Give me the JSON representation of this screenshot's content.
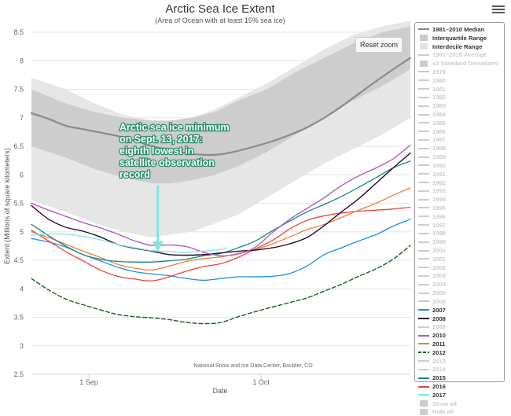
{
  "ui": {
    "menu_icon": "hamburger-menu-icon",
    "reset_zoom_label": "Reset zoom",
    "credit": "National Snow and Ice Data Center, Boulder, CO",
    "annotation_lines": [
      "Arctic sea ice minimum",
      "on Sept. 13, 2017:",
      "eighth lowest in",
      "satellite observation",
      "record"
    ]
  },
  "legend": {
    "items": [
      {
        "label": "1981–2010 Median",
        "symbol": "line",
        "color": "#898989",
        "active": true
      },
      {
        "label": "Interquartile Range",
        "symbol": "box",
        "color": "#c8c8c8",
        "active": true
      },
      {
        "label": "Interdecile Range",
        "symbol": "box",
        "color": "#e3e3e3",
        "active": true
      },
      {
        "label": "1981–2010 Average",
        "symbol": "line",
        "color": "#cccccc",
        "active": false
      },
      {
        "label": "±2 Standard Deviations",
        "symbol": "box",
        "color": "#cccccc",
        "active": false
      },
      {
        "label": "1979",
        "symbol": "line",
        "color": "#cccccc",
        "active": false
      },
      {
        "label": "1980",
        "symbol": "line",
        "color": "#cccccc",
        "active": false
      },
      {
        "label": "1981",
        "symbol": "line",
        "color": "#cccccc",
        "active": false
      },
      {
        "label": "1982",
        "symbol": "line",
        "color": "#cccccc",
        "active": false
      },
      {
        "label": "1983",
        "symbol": "line",
        "color": "#cccccc",
        "active": false
      },
      {
        "label": "1984",
        "symbol": "line",
        "color": "#cccccc",
        "active": false
      },
      {
        "label": "1985",
        "symbol": "line",
        "color": "#cccccc",
        "active": false
      },
      {
        "label": "1986",
        "symbol": "line",
        "color": "#cccccc",
        "active": false
      },
      {
        "label": "1987",
        "symbol": "line",
        "color": "#cccccc",
        "active": false
      },
      {
        "label": "1988",
        "symbol": "line",
        "color": "#cccccc",
        "active": false
      },
      {
        "label": "1989",
        "symbol": "line",
        "color": "#cccccc",
        "active": false
      },
      {
        "label": "1990",
        "symbol": "line",
        "color": "#cccccc",
        "active": false
      },
      {
        "label": "1991",
        "symbol": "line",
        "color": "#cccccc",
        "active": false
      },
      {
        "label": "1992",
        "symbol": "line",
        "color": "#cccccc",
        "active": false
      },
      {
        "label": "1993",
        "symbol": "line",
        "color": "#cccccc",
        "active": false
      },
      {
        "label": "1994",
        "symbol": "line",
        "color": "#cccccc",
        "active": false
      },
      {
        "label": "1995",
        "symbol": "line",
        "color": "#cccccc",
        "active": false
      },
      {
        "label": "1996",
        "symbol": "line",
        "color": "#cccccc",
        "active": false
      },
      {
        "label": "1997",
        "symbol": "line",
        "color": "#cccccc",
        "active": false
      },
      {
        "label": "1998",
        "symbol": "line",
        "color": "#cccccc",
        "active": false
      },
      {
        "label": "1999",
        "symbol": "line",
        "color": "#cccccc",
        "active": false
      },
      {
        "label": "2000",
        "symbol": "line",
        "color": "#cccccc",
        "active": false
      },
      {
        "label": "2001",
        "symbol": "line",
        "color": "#cccccc",
        "active": false
      },
      {
        "label": "2002",
        "symbol": "line",
        "color": "#cccccc",
        "active": false
      },
      {
        "label": "2003",
        "symbol": "line",
        "color": "#cccccc",
        "active": false
      },
      {
        "label": "2004",
        "symbol": "line",
        "color": "#cccccc",
        "active": false
      },
      {
        "label": "2005",
        "symbol": "line",
        "color": "#cccccc",
        "active": false
      },
      {
        "label": "2006",
        "symbol": "line",
        "color": "#cccccc",
        "active": false
      },
      {
        "label": "2007",
        "symbol": "line",
        "color": "#1f8ee6",
        "active": true
      },
      {
        "label": "2008",
        "symbol": "line",
        "color": "#2a0a2e",
        "active": true
      },
      {
        "label": "2009",
        "symbol": "line",
        "color": "#cccccc",
        "active": false
      },
      {
        "label": "2010",
        "symbol": "line",
        "color": "#b05ec4",
        "active": true
      },
      {
        "label": "2011",
        "symbol": "line",
        "color": "#f07e3c",
        "active": true
      },
      {
        "label": "2012",
        "symbol": "dash",
        "color": "#1b5e20",
        "active": true
      },
      {
        "label": "2013",
        "symbol": "line",
        "color": "#cccccc",
        "active": false
      },
      {
        "label": "2014",
        "symbol": "line",
        "color": "#cccccc",
        "active": false
      },
      {
        "label": "2015",
        "symbol": "line",
        "color": "#16878a",
        "active": true
      },
      {
        "label": "2016",
        "symbol": "line",
        "color": "#e8453c",
        "active": true
      },
      {
        "label": "2017",
        "symbol": "line",
        "color": "#7fe6e0",
        "active": true
      },
      {
        "label": "Show all",
        "symbol": "box",
        "color": "#cccccc",
        "active": false
      },
      {
        "label": "Hide all",
        "symbol": "box",
        "color": "#cccccc",
        "active": false
      }
    ]
  },
  "chart_data": {
    "type": "line",
    "title": "Arctic Sea Ice Extent",
    "subtitle": "(Area of Ocean with at least 15% sea ice)",
    "xlabel": "Date",
    "ylabel": "Extent (Millions of square kilometers)",
    "x_unit": "day of year",
    "xlim": [
      234,
      300
    ],
    "ylim": [
      2.5,
      8.5
    ],
    "y_ticks": [
      "2.5",
      "3",
      "3.5",
      "4",
      "4.5",
      "5",
      "5.5",
      "6",
      "6.5",
      "7",
      "7.5",
      "8",
      "8.5"
    ],
    "x_ticks": [
      {
        "day": 244,
        "label": "1 Sep"
      },
      {
        "day": 274,
        "label": "1 Oct"
      }
    ],
    "grid": "horizontal",
    "legend_position": "right",
    "annotation": {
      "text": "Arctic sea ice minimum on Sept. 13, 2017: eighth lowest in satellite observation record",
      "day": 256,
      "value": 4.64
    },
    "bands": [
      {
        "name": "Interdecile Range",
        "color": "#e6e6e6",
        "x": [
          234,
          240,
          245,
          250,
          255,
          258,
          262,
          266,
          270,
          275,
          280,
          285,
          290,
          295,
          300
        ],
        "lower": [
          5.55,
          5.35,
          5.15,
          5.0,
          4.9,
          4.95,
          5.0,
          5.15,
          5.3,
          5.6,
          5.9,
          6.2,
          6.45,
          6.7,
          7.0
        ],
        "upper": [
          7.7,
          7.5,
          7.25,
          7.05,
          6.95,
          6.95,
          7.0,
          7.15,
          7.35,
          7.6,
          7.9,
          8.2,
          8.45,
          8.6,
          8.7
        ]
      },
      {
        "name": "Interquartile Range",
        "color": "#cdcdcd",
        "x": [
          234,
          240,
          245,
          250,
          255,
          258,
          262,
          266,
          270,
          275,
          280,
          285,
          290,
          295,
          300
        ],
        "lower": [
          6.5,
          6.3,
          6.1,
          5.95,
          5.85,
          5.85,
          5.9,
          6.0,
          6.15,
          6.4,
          6.7,
          7.0,
          7.3,
          7.55,
          7.85
        ],
        "upper": [
          7.5,
          7.25,
          7.1,
          7.0,
          6.95,
          6.95,
          7.0,
          7.1,
          7.3,
          7.5,
          7.8,
          8.05,
          8.3,
          8.5,
          8.6
        ]
      }
    ],
    "series": [
      {
        "name": "1981–2010 Median",
        "color": "#898989",
        "width": 2.2,
        "dash": "",
        "x": [
          234,
          237,
          240,
          243,
          246,
          249,
          252,
          255,
          258,
          261,
          264,
          267,
          270,
          273,
          276,
          279,
          282,
          285,
          288,
          291,
          294,
          297,
          300
        ],
        "y": [
          7.08,
          6.98,
          6.86,
          6.8,
          6.74,
          6.68,
          6.6,
          6.5,
          6.44,
          6.38,
          6.35,
          6.36,
          6.42,
          6.5,
          6.59,
          6.7,
          6.83,
          7.0,
          7.2,
          7.42,
          7.64,
          7.85,
          8.05
        ]
      },
      {
        "name": "2012",
        "color": "#1b5e20",
        "width": 1.4,
        "dash": "5,3",
        "x": [
          234,
          237,
          240,
          243,
          246,
          249,
          252,
          255,
          258,
          261,
          264,
          267,
          270,
          273,
          276,
          279,
          282,
          285,
          288,
          291,
          294,
          297,
          300
        ],
        "y": [
          4.18,
          3.98,
          3.82,
          3.72,
          3.63,
          3.55,
          3.51,
          3.49,
          3.46,
          3.41,
          3.39,
          3.41,
          3.51,
          3.6,
          3.68,
          3.76,
          3.84,
          3.96,
          4.08,
          4.22,
          4.35,
          4.52,
          4.76
        ]
      },
      {
        "name": "2007",
        "color": "#1f8ee6",
        "width": 1.3,
        "dash": "",
        "x": [
          234,
          237,
          240,
          243,
          246,
          249,
          252,
          255,
          258,
          261,
          264,
          267,
          270,
          273,
          276,
          279,
          282,
          285,
          288,
          291,
          294,
          297,
          300
        ],
        "y": [
          4.88,
          4.82,
          4.73,
          4.6,
          4.49,
          4.38,
          4.3,
          4.26,
          4.23,
          4.18,
          4.15,
          4.18,
          4.21,
          4.21,
          4.22,
          4.27,
          4.4,
          4.6,
          4.72,
          4.84,
          4.95,
          5.1,
          5.22
        ]
      },
      {
        "name": "2016",
        "color": "#e8453c",
        "width": 1.3,
        "dash": "",
        "x": [
          234,
          237,
          240,
          243,
          246,
          249,
          252,
          255,
          258,
          261,
          264,
          267,
          270,
          273,
          276,
          279,
          282,
          285,
          288,
          291,
          294,
          297,
          300
        ],
        "y": [
          5.03,
          4.84,
          4.65,
          4.49,
          4.33,
          4.22,
          4.17,
          4.14,
          4.21,
          4.31,
          4.39,
          4.44,
          4.55,
          4.7,
          4.85,
          5.05,
          5.2,
          5.28,
          5.33,
          5.36,
          5.38,
          5.4,
          5.43
        ]
      },
      {
        "name": "2011",
        "color": "#f07e3c",
        "width": 1.3,
        "dash": "",
        "x": [
          234,
          237,
          240,
          243,
          246,
          249,
          252,
          255,
          258,
          261,
          264,
          267,
          270,
          273,
          276,
          279,
          282,
          285,
          288,
          291,
          294,
          297,
          300
        ],
        "y": [
          5.0,
          4.9,
          4.78,
          4.66,
          4.55,
          4.43,
          4.36,
          4.33,
          4.4,
          4.48,
          4.53,
          4.56,
          4.62,
          4.69,
          4.79,
          4.91,
          5.04,
          5.13,
          5.25,
          5.38,
          5.5,
          5.64,
          5.77
        ]
      },
      {
        "name": "2015",
        "color": "#16878a",
        "width": 1.3,
        "dash": "",
        "x": [
          234,
          237,
          240,
          243,
          246,
          249,
          252,
          255,
          258,
          261,
          264,
          267,
          270,
          273,
          276,
          279,
          282,
          285,
          288,
          291,
          294,
          297,
          300
        ],
        "y": [
          5.13,
          4.93,
          4.75,
          4.6,
          4.52,
          4.48,
          4.47,
          4.47,
          4.49,
          4.52,
          4.58,
          4.62,
          4.72,
          4.84,
          5.02,
          5.19,
          5.35,
          5.48,
          5.62,
          5.78,
          5.95,
          6.12,
          6.24
        ]
      },
      {
        "name": "2008",
        "color": "#2a0a2e",
        "width": 1.4,
        "dash": "",
        "x": [
          234,
          237,
          240,
          243,
          246,
          249,
          252,
          255,
          258,
          261,
          264,
          267,
          270,
          273,
          276,
          279,
          282,
          285,
          288,
          291,
          294,
          297,
          300
        ],
        "y": [
          5.46,
          5.22,
          5.08,
          5.01,
          4.91,
          4.78,
          4.71,
          4.66,
          4.6,
          4.59,
          4.6,
          4.63,
          4.66,
          4.68,
          4.72,
          4.79,
          4.9,
          5.11,
          5.35,
          5.58,
          5.85,
          6.12,
          6.38
        ]
      },
      {
        "name": "2010",
        "color": "#b05ec4",
        "width": 1.4,
        "dash": "",
        "x": [
          234,
          237,
          240,
          243,
          246,
          249,
          252,
          255,
          258,
          261,
          264,
          267,
          270,
          273,
          276,
          279,
          282,
          285,
          288,
          291,
          294,
          297,
          300
        ],
        "y": [
          5.5,
          5.38,
          5.27,
          5.16,
          5.07,
          4.96,
          4.84,
          4.76,
          4.77,
          4.74,
          4.64,
          4.58,
          4.61,
          4.73,
          4.99,
          5.22,
          5.41,
          5.6,
          5.81,
          5.98,
          6.12,
          6.28,
          6.52
        ]
      },
      {
        "name": "2017",
        "color": "#7fe6e0",
        "width": 1.3,
        "dash": "",
        "x": [
          234,
          237,
          240,
          243,
          246,
          249,
          252,
          255,
          258,
          261,
          264,
          267,
          268
        ],
        "y": [
          4.94,
          4.96,
          4.96,
          4.92,
          4.86,
          4.78,
          4.72,
          4.67,
          4.65,
          4.64,
          4.66,
          4.69,
          4.72
        ]
      }
    ]
  }
}
